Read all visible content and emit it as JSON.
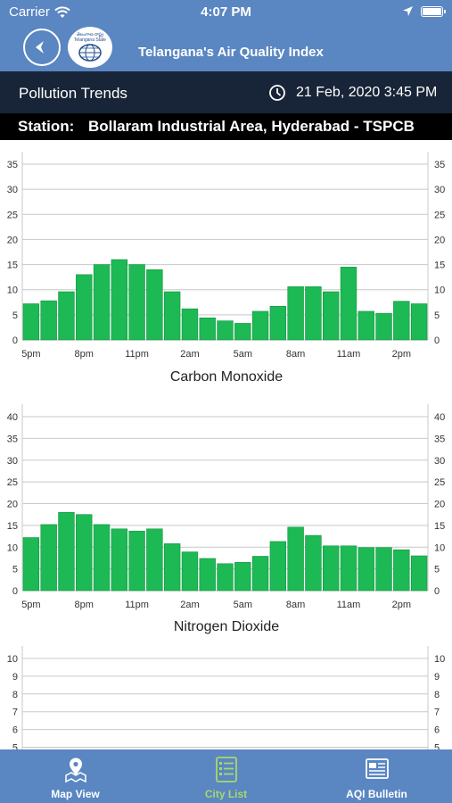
{
  "status_bar": {
    "carrier": "Carrier",
    "time": "4:07 PM"
  },
  "nav": {
    "title": "Telangana's Air Quality Index",
    "logo_text_1": "తెలంగాణ రాష్ట్ర",
    "logo_text_2": "Telangana State"
  },
  "trends": {
    "title": "Pollution Trends",
    "datetime": "21 Feb, 2020 3:45 PM"
  },
  "station": {
    "label": "Station:",
    "name": "Bollaram Industrial Area, Hyderabad - TSPCB"
  },
  "tabs": [
    {
      "label": "Map View",
      "icon": "map-pin-icon",
      "active": false
    },
    {
      "label": "City List",
      "icon": "list-icon",
      "active": true
    },
    {
      "label": "AQI Bulletin",
      "icon": "newspaper-icon",
      "active": false
    }
  ],
  "colors": {
    "bar": "#1db954",
    "bar_edge": "#13943f",
    "grid": "#c8c8c8",
    "header": "#5a86c2",
    "active_tab": "#a8d86a"
  },
  "chart_data": [
    {
      "type": "bar",
      "title": "Carbon Monoxide",
      "ylim": [
        0,
        35
      ],
      "yticks": [
        0,
        5,
        10,
        15,
        20,
        25,
        30,
        35
      ],
      "xtick_labels": [
        "5pm",
        "8pm",
        "11pm",
        "2am",
        "5am",
        "8am",
        "11am",
        "2pm"
      ],
      "values": [
        7.2,
        7.8,
        9.6,
        13,
        15,
        16,
        15,
        14,
        9.6,
        6.2,
        4.4,
        3.8,
        3.3,
        5.7,
        6.7,
        10.6,
        10.6,
        9.6,
        14.5,
        5.7,
        5.3,
        7.7,
        7.2
      ]
    },
    {
      "type": "bar",
      "title": "Nitrogen Dioxide",
      "ylim": [
        0,
        40
      ],
      "yticks": [
        0,
        5,
        10,
        15,
        20,
        25,
        30,
        35,
        40
      ],
      "xtick_labels": [
        "5pm",
        "8pm",
        "11pm",
        "2am",
        "5am",
        "8am",
        "11am",
        "2pm"
      ],
      "values": [
        12.2,
        15.2,
        18,
        17.5,
        15.2,
        14.2,
        13.7,
        14.2,
        10.8,
        8.9,
        7.4,
        6.2,
        6.5,
        7.9,
        11.3,
        14.6,
        12.7,
        10.3,
        10.3,
        9.9,
        9.9,
        9.4,
        8
      ]
    },
    {
      "type": "bar",
      "title": "",
      "ylim": [
        0,
        10
      ],
      "yticks": [
        5,
        6,
        7,
        8,
        9,
        10
      ],
      "xtick_labels": [],
      "values": []
    }
  ]
}
